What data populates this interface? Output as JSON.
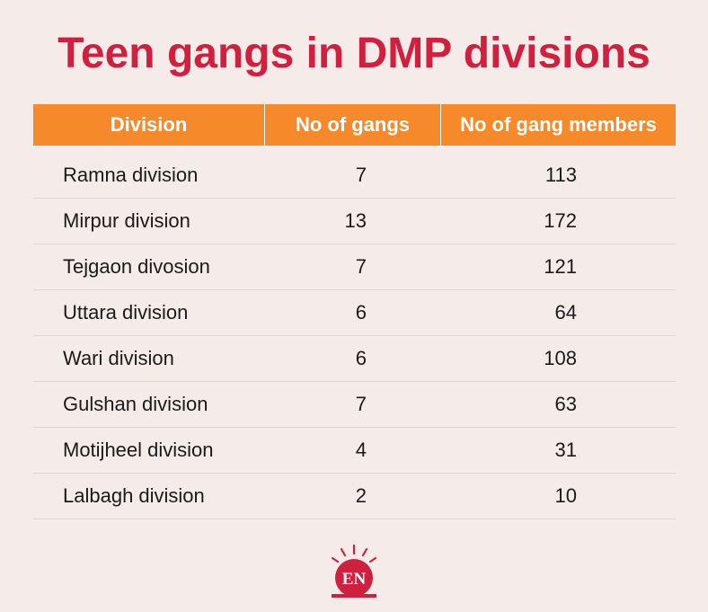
{
  "chart_data": {
    "type": "table",
    "title": "Teen gangs in DMP divisions",
    "columns": [
      "Division",
      "No of gangs",
      "No of gang members"
    ],
    "rows": [
      {
        "division": "Ramna division",
        "gangs": "7",
        "members": "113"
      },
      {
        "division": "Mirpur division",
        "gangs": "13",
        "members": "172"
      },
      {
        "division": "Tejgaon divosion",
        "gangs": "7",
        "members": "121"
      },
      {
        "division": "Uttara division",
        "gangs": "6",
        "members": "64"
      },
      {
        "division": "Wari division",
        "gangs": "6",
        "members": "108"
      },
      {
        "division": "Gulshan division",
        "gangs": "7",
        "members": "63"
      },
      {
        "division": "Motijheel division",
        "gangs": "4",
        "members": "31"
      },
      {
        "division": "Lalbagh division",
        "gangs": "2",
        "members": "10"
      }
    ]
  },
  "colors": {
    "title": "#d0203f",
    "header_bg": "#f6892a",
    "background": "#f5ece9",
    "logo_red": "#d0203f"
  },
  "logo": {
    "text": "EN",
    "icon": "sun-rays-logo-icon"
  }
}
